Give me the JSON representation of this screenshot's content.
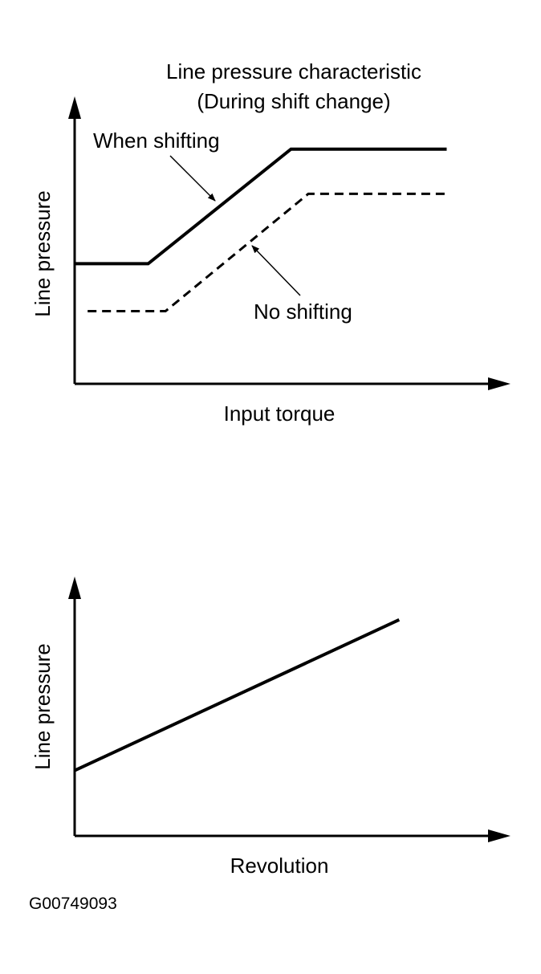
{
  "chart_data": [
    {
      "type": "line",
      "title": "Line pressure characteristic",
      "subtitle": "(During shift change)",
      "xlabel": "Input torque",
      "ylabel": "Line pressure",
      "xlim": [
        0,
        100
      ],
      "ylim": [
        0,
        100
      ],
      "grid": false,
      "series": [
        {
          "name": "When shifting",
          "style": "solid",
          "x": [
            0,
            17,
            50,
            86
          ],
          "y": [
            43,
            43,
            84,
            84
          ]
        },
        {
          "name": "No shifting",
          "style": "dashed",
          "x": [
            3,
            21,
            54,
            86
          ],
          "y": [
            26,
            26,
            68,
            68
          ]
        }
      ]
    },
    {
      "type": "line",
      "title": "",
      "xlabel": "Revolution",
      "ylabel": "Line pressure",
      "xlim": [
        0,
        100
      ],
      "ylim": [
        0,
        100
      ],
      "grid": false,
      "series": [
        {
          "style": "solid",
          "x": [
            0,
            75
          ],
          "y": [
            26,
            86
          ]
        }
      ]
    }
  ],
  "figure_id": "G00749093",
  "colors": {
    "ink": "#000000",
    "background": "#ffffff"
  }
}
